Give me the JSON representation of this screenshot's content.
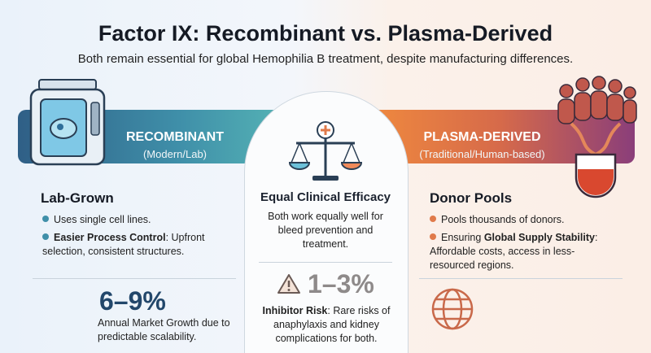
{
  "header": {
    "title": "Factor IX: Recombinant vs. Plasma-Derived",
    "subtitle": "Both remain essential for global Hemophilia B treatment, despite manufacturing differences."
  },
  "left": {
    "label": "RECOMBINANT",
    "sublabel": "(Modern/Lab)",
    "heading": "Lab-Grown",
    "bullets": [
      {
        "text": "Uses single cell lines."
      },
      {
        "bold": "Easier Process Control",
        "text": ": Upfront selection, consistent structures."
      }
    ],
    "stat": {
      "value": "6–9%",
      "caption": "Annual Market Growth due to predictable scalability."
    }
  },
  "center": {
    "heading": "Equal Clinical Efficacy",
    "text": "Both work equally well for bleed prevention and treatment.",
    "stat": {
      "value": "1–3%",
      "bold": "Inhibitor Risk",
      "text": ": Rare risks of anaphylaxis and kidney complications for both."
    }
  },
  "right": {
    "label": "PLASMA-DERIVED",
    "sublabel": "(Traditional/Human-based)",
    "heading": "Donor Pools",
    "bullets": [
      {
        "text": "Pools thousands of donors."
      },
      {
        "prefix": "Ensuring ",
        "bold": "Global Supply Stability",
        "text": ": Affordable costs, access in less-resourced regions."
      }
    ]
  }
}
